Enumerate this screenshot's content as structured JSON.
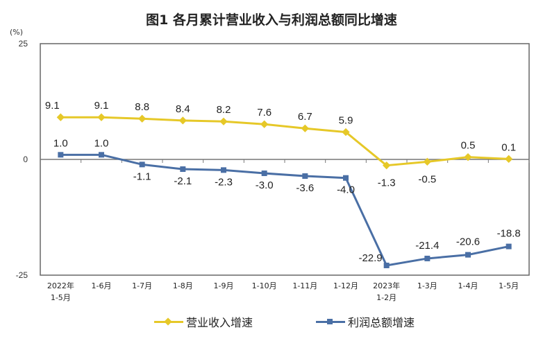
{
  "chart_data": {
    "type": "line",
    "title": "图1  各月累计营业收入与利润总额同比增速",
    "ylabel": "(%)",
    "xlabel": "",
    "ylim": [
      -25,
      25
    ],
    "yticks": [
      "25",
      "0",
      "-25"
    ],
    "grid": false,
    "legend_position": "bottom",
    "categories": [
      "2022年\n1-5月",
      "1-6月",
      "1-7月",
      "1-8月",
      "1-9月",
      "1-10月",
      "1-11月",
      "1-12月",
      "2023年\n1-2月",
      "1-3月",
      "1-4月",
      "1-5月"
    ],
    "series": [
      {
        "name": "营业收入增速",
        "color": "#E6C828",
        "values": [
          9.1,
          9.1,
          8.8,
          8.4,
          8.2,
          7.6,
          6.7,
          5.9,
          -1.3,
          -0.5,
          0.5,
          0.1
        ]
      },
      {
        "name": "利润总额增速",
        "color": "#4A6FA5",
        "values": [
          1.0,
          1.0,
          -1.1,
          -2.1,
          -2.3,
          -3.0,
          -3.6,
          -4.0,
          -22.9,
          -21.4,
          -20.6,
          -18.8
        ]
      }
    ]
  }
}
